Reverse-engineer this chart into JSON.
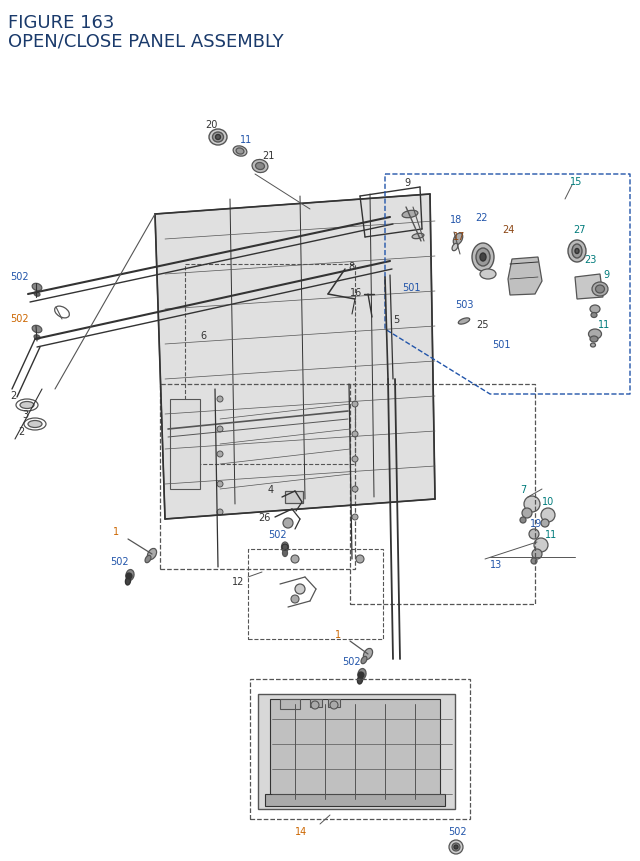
{
  "title_line1": "FIGURE 163",
  "title_line2": "OPEN/CLOSE PANEL ASSEMBLY",
  "title_color": "#1a3a6b",
  "title_fontsize": 12,
  "bg_color": "#ffffff",
  "gray": "#555555",
  "dark": "#333333",
  "blue": "#2255aa",
  "orange": "#cc6600",
  "teal": "#007b7b",
  "brown": "#8B4513"
}
